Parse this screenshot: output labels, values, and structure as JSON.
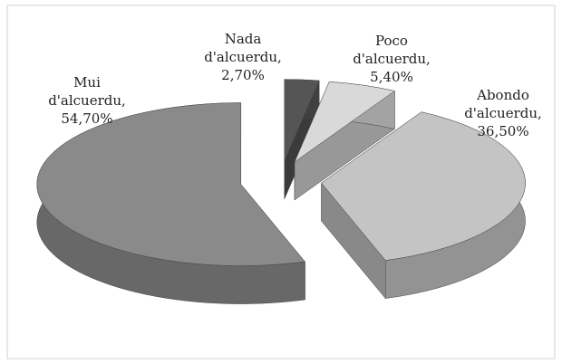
{
  "chart_data": {
    "type": "pie",
    "categories": [
      "Nada d'alcuerdu,",
      "Poco d'alcuerdu,",
      "Abondo d'alcuerdu,",
      "Mui d'alcuerdu,"
    ],
    "values": [
      2.7,
      5.4,
      36.5,
      54.7
    ],
    "value_labels": [
      "2,70%",
      "5,40%",
      "36,50%",
      "54,70%"
    ],
    "colors": [
      "#555555",
      "#d9d9d9",
      "#c4c4c4",
      "#8a8a8a"
    ]
  }
}
